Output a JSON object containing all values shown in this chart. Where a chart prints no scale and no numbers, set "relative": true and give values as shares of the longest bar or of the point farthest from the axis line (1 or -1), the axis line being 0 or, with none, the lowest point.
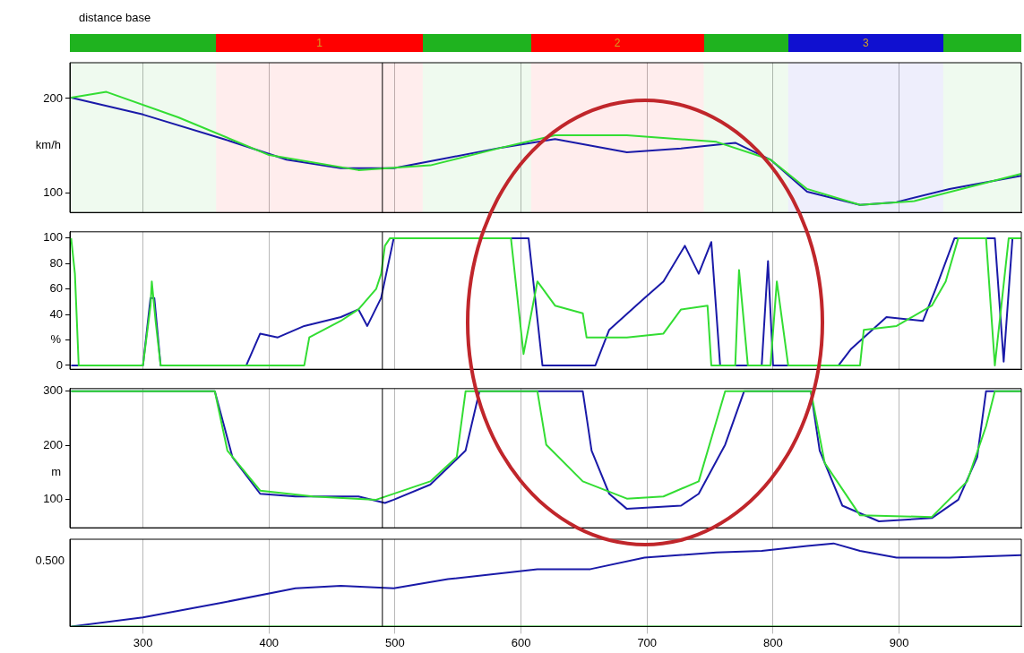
{
  "chart_data": [
    {
      "type": "line",
      "title": "distance base",
      "ylabel": "km/h",
      "xlim": [
        242,
        997
      ],
      "xticks": [
        300,
        400,
        500,
        600,
        700,
        800,
        900
      ],
      "ylim": [
        79,
        238
      ],
      "yticks": [
        100,
        200
      ],
      "grid": "x",
      "tick_labels": "y",
      "bands": [
        {
          "axis": "x",
          "from": 242,
          "to": 358,
          "color": "#1fb31f"
        },
        {
          "axis": "x",
          "from": 358,
          "to": 522,
          "label": "1",
          "color": "#ff0000"
        },
        {
          "axis": "x",
          "from": 522,
          "to": 608,
          "color": "#1fb31f"
        },
        {
          "axis": "x",
          "from": 608,
          "to": 745,
          "label": "2",
          "color": "#ff0000"
        },
        {
          "axis": "x",
          "from": 745,
          "to": 812,
          "color": "#1fb31f"
        },
        {
          "axis": "x",
          "from": 812,
          "to": 935,
          "label": "3",
          "color": "#1010d0"
        },
        {
          "axis": "x",
          "from": 935,
          "to": 997,
          "color": "#1fb31f"
        }
      ],
      "ref_lines": [
        {
          "axis": "x",
          "value": 490,
          "color": "#000000"
        }
      ],
      "series": [
        {
          "color": "#33dd33",
          "x": [
            243,
            271,
            328,
            400,
            471,
            528,
            585,
            627,
            684,
            755,
            798,
            827,
            869,
            912,
            997
          ],
          "values": [
            201,
            207,
            180,
            140,
            124,
            129,
            148,
            161,
            161,
            154,
            135,
            104,
            87,
            91,
            120
          ]
        },
        {
          "color": "#1a1aa8",
          "x": [
            243,
            300,
            364,
            414,
            457,
            499,
            542,
            585,
            627,
            684,
            727,
            770,
            798,
            827,
            869,
            898,
            940,
            997
          ],
          "values": [
            201,
            183,
            157,
            135,
            126,
            126,
            137,
            148,
            157,
            143,
            147,
            153,
            135,
            101,
            87,
            90,
            104,
            118
          ]
        }
      ]
    },
    {
      "type": "line",
      "ylabel": "%",
      "xlim": [
        242,
        997
      ],
      "xticks": [
        300,
        400,
        500,
        600,
        700,
        800,
        900
      ],
      "ylim": [
        -3,
        105
      ],
      "yticks": [
        0,
        {
          "value": 20,
          "label": null
        },
        40,
        60,
        80,
        100
      ],
      "grid": "x",
      "tick_labels": "y",
      "ref_lines": [
        {
          "axis": "x",
          "value": 490,
          "color": "#000000"
        }
      ],
      "series": [
        {
          "color": "#33dd33",
          "x": [
            243,
            246,
            249,
            300,
            306,
            307,
            310,
            314,
            428,
            432,
            457,
            471,
            485,
            489,
            492,
            496,
            592,
            602,
            613,
            627,
            649,
            652,
            684,
            713,
            727,
            748,
            751,
            770,
            773,
            780,
            798,
            803,
            812,
            869,
            872,
            898,
            926,
            937,
            947,
            969,
            976,
            987,
            997
          ],
          "values": [
            100,
            72,
            0,
            0,
            47,
            66,
            35,
            0,
            0,
            22,
            35,
            44,
            60,
            72,
            94,
            100,
            100,
            9,
            66,
            47,
            41,
            22,
            22,
            25,
            44,
            47,
            0,
            0,
            75,
            0,
            0,
            66,
            0,
            0,
            28,
            31,
            47,
            66,
            100,
            100,
            0,
            100,
            100
          ]
        },
        {
          "color": "#1a1aa8",
          "x": [
            243,
            300,
            306,
            309,
            314,
            382,
            393,
            407,
            428,
            457,
            471,
            478,
            489,
            499,
            606,
            617,
            659,
            670,
            698,
            713,
            730,
            741,
            751,
            758,
            791,
            796,
            800,
            852,
            862,
            890,
            919,
            929,
            944,
            976,
            983,
            990,
            997
          ],
          "values": [
            0,
            0,
            53,
            53,
            0,
            0,
            25,
            22,
            31,
            38,
            44,
            31,
            53,
            100,
            100,
            0,
            0,
            28,
            53,
            66,
            94,
            72,
            97,
            0,
            0,
            82,
            0,
            0,
            13,
            38,
            35,
            60,
            100,
            100,
            3,
            100,
            100
          ]
        }
      ]
    },
    {
      "type": "line",
      "ylabel": "m",
      "xlim": [
        242,
        997
      ],
      "xticks": [
        300,
        400,
        500,
        600,
        700,
        800,
        900
      ],
      "ylim": [
        47,
        305
      ],
      "yticks": [
        100,
        200,
        300
      ],
      "grid": "x",
      "tick_labels": "y",
      "ref_lines": [
        {
          "axis": "x",
          "value": 490,
          "color": "#000000"
        }
      ],
      "series": [
        {
          "color": "#33dd33",
          "x": [
            243,
            357,
            367,
            393,
            435,
            485,
            528,
            549,
            556,
            613,
            620,
            649,
            684,
            713,
            741,
            762,
            830,
            841,
            869,
            926,
            954,
            969,
            976,
            997
          ],
          "values": [
            300,
            300,
            190,
            116,
            105,
            99,
            133,
            178,
            300,
            300,
            201,
            133,
            101,
            105,
            133,
            300,
            300,
            167,
            70,
            67,
            133,
            235,
            300,
            300
          ]
        },
        {
          "color": "#1a1aa8",
          "x": [
            243,
            357,
            371,
            393,
            421,
            471,
            492,
            499,
            528,
            556,
            567,
            649,
            656,
            670,
            684,
            727,
            741,
            762,
            777,
            830,
            837,
            855,
            884,
            926,
            947,
            962,
            969,
            990,
            997
          ],
          "values": [
            300,
            300,
            178,
            110,
            105,
            105,
            93,
            99,
            127,
            190,
            300,
            300,
            190,
            110,
            82,
            88,
            110,
            201,
            300,
            300,
            190,
            88,
            59,
            65,
            99,
            178,
            300,
            300,
            300
          ]
        }
      ]
    },
    {
      "type": "line",
      "relative": true,
      "annotations": [
        "0.500"
      ],
      "xlim": [
        242,
        997
      ],
      "xticks": [
        300,
        400,
        500,
        600,
        700,
        800,
        900
      ],
      "grid": "x",
      "ref_lines": [
        {
          "axis": "x",
          "value": 490,
          "color": "#000000"
        }
      ],
      "series": [
        {
          "color": "#33dd33",
          "x": [
            243,
            997
          ],
          "values": [
            0,
            0
          ]
        },
        {
          "color": "#1a1aa8",
          "x": [
            243,
            300,
            364,
            421,
            457,
            499,
            542,
            613,
            655,
            698,
            755,
            791,
            827,
            848,
            869,
            898,
            940,
            997
          ],
          "values": [
            0,
            0.11,
            0.29,
            0.46,
            0.49,
            0.46,
            0.57,
            0.69,
            0.69,
            0.83,
            0.89,
            0.91,
            0.97,
            1.0,
            0.91,
            0.83,
            0.83,
            0.86
          ]
        }
      ]
    }
  ]
}
